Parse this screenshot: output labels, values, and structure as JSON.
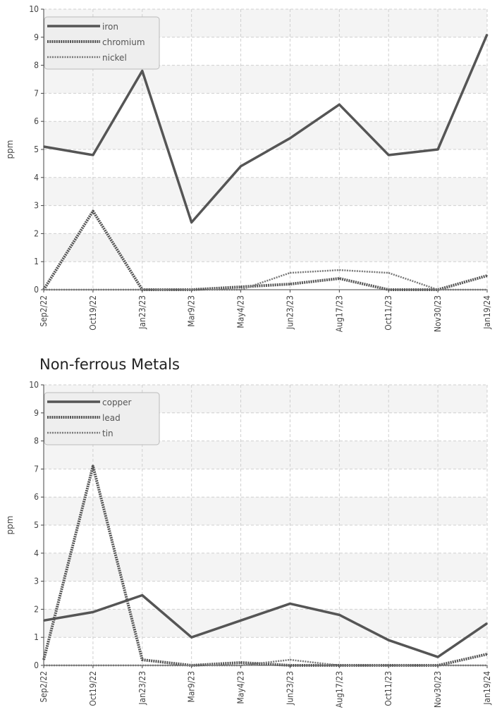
{
  "chart_data": [
    {
      "type": "line",
      "title": "",
      "xlabel": "",
      "ylabel": "ppm",
      "ylim": [
        0,
        10
      ],
      "yticks": [
        0,
        1,
        2,
        3,
        4,
        5,
        6,
        7,
        8,
        9,
        10
      ],
      "grid": true,
      "legend": "top-left",
      "categories": [
        "Sep2/22",
        "Oct19/22",
        "Jan23/23",
        "Mar9/23",
        "May4/23",
        "Jun23/23",
        "Aug17/23",
        "Oct11/23",
        "Nov30/23",
        "Jan19/24"
      ],
      "series": [
        {
          "name": "iron",
          "style": "solid",
          "color": "#555555",
          "values": [
            5.1,
            4.8,
            7.8,
            2.4,
            4.4,
            5.4,
            6.6,
            4.8,
            5.0,
            9.1
          ]
        },
        {
          "name": "chromium",
          "style": "dotted",
          "color": "#555555",
          "values": [
            0,
            2.8,
            0,
            0,
            0.1,
            0.2,
            0.4,
            0,
            0,
            0.5
          ]
        },
        {
          "name": "nickel",
          "style": "dashed",
          "color": "#777777",
          "values": [
            0,
            0,
            0,
            0,
            0,
            0.6,
            0.7,
            0.6,
            0,
            0
          ]
        }
      ]
    },
    {
      "type": "line",
      "title": "Non-ferrous Metals",
      "xlabel": "",
      "ylabel": "ppm",
      "ylim": [
        0,
        10
      ],
      "yticks": [
        0,
        1,
        2,
        3,
        4,
        5,
        6,
        7,
        8,
        9,
        10
      ],
      "grid": true,
      "legend": "top-left",
      "categories": [
        "Sep2/22",
        "Oct19/22",
        "Jan23/23",
        "Mar9/23",
        "May4/23",
        "Jun23/23",
        "Aug17/23",
        "Oct11/23",
        "Nov30/23",
        "Jan19/24"
      ],
      "series": [
        {
          "name": "copper",
          "style": "solid",
          "color": "#555555",
          "values": [
            1.6,
            1.9,
            2.5,
            1.0,
            1.6,
            2.2,
            1.8,
            0.9,
            0.3,
            1.5
          ]
        },
        {
          "name": "lead",
          "style": "dotted",
          "color": "#555555",
          "values": [
            0.2,
            7.1,
            0.2,
            0,
            0.1,
            0,
            0,
            0,
            0,
            0.4
          ]
        },
        {
          "name": "tin",
          "style": "dashed",
          "color": "#777777",
          "values": [
            0,
            0,
            0,
            0,
            0,
            0.2,
            0,
            0,
            0,
            0
          ]
        }
      ]
    }
  ]
}
